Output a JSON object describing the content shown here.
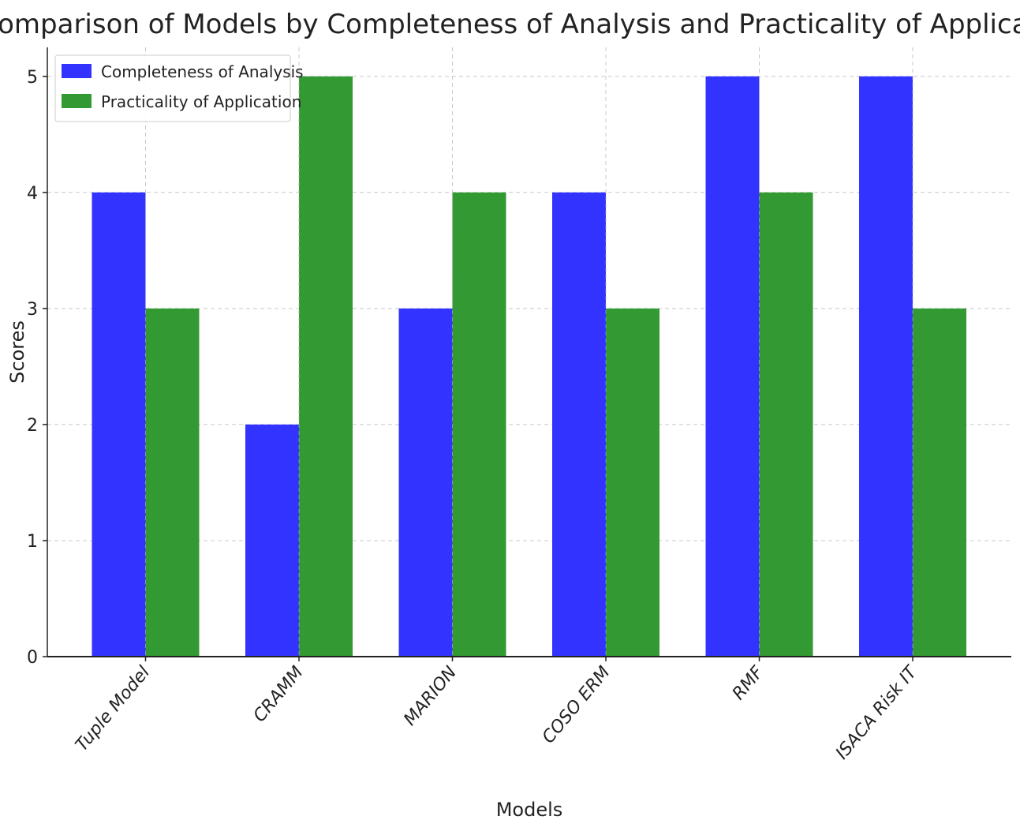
{
  "chart_data": {
    "type": "bar",
    "title": "Comparison of Models by Completeness of Analysis and Practicality of Application",
    "xlabel": "Models",
    "ylabel": "Scores",
    "categories": [
      "Tuple Model",
      "CRAMM",
      "MARION",
      "COSO ERM",
      "RMF",
      "ISACA Risk IT"
    ],
    "series": [
      {
        "name": "Completeness of Analysis",
        "values": [
          4,
          2,
          3,
          4,
          5,
          5
        ],
        "color": "#3333ff"
      },
      {
        "name": "Practicality of Application",
        "values": [
          3,
          5,
          4,
          3,
          4,
          3
        ],
        "color": "#339933"
      }
    ],
    "ylim": [
      0,
      5.25
    ],
    "yticks": [
      0,
      1,
      2,
      3,
      4,
      5
    ],
    "grid": true,
    "legend_position": "top-left"
  }
}
